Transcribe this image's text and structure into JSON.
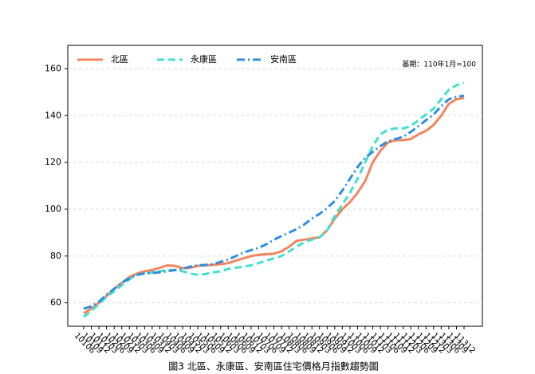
{
  "chart_data": {
    "type": "line",
    "caption": "圖3 北區、永康區、安南區住宅價格月指數趨勢圖",
    "annotation": "基期：110年1月=100",
    "categories": [
      "10106",
      "10109",
      "10112",
      "10203",
      "10206",
      "10209",
      "10212",
      "10303",
      "10306",
      "10309",
      "10312",
      "10403",
      "10406",
      "10409",
      "10412",
      "10503",
      "10506",
      "10509",
      "10512",
      "10603",
      "10606",
      "10609",
      "10612",
      "10703",
      "10706",
      "10709",
      "10712",
      "10803",
      "10806",
      "10809",
      "10812",
      "10903",
      "10906",
      "10909",
      "10912",
      "11003",
      "11006",
      "11009",
      "11012",
      "11103",
      "11106",
      "11109",
      "11112",
      "11203",
      "11206",
      "11209",
      "11212",
      "11303",
      "11306",
      "11309",
      "11312"
    ],
    "series": [
      {
        "name": "北區",
        "color": "#f4845f",
        "dash": "solid",
        "values": [
          55.5,
          57.5,
          60,
          63,
          66,
          68.5,
          71,
          72.5,
          73.5,
          74,
          75,
          76,
          75.8,
          74.8,
          75,
          75.8,
          76,
          76.2,
          76.5,
          77,
          78,
          79,
          80,
          80.5,
          80.8,
          81,
          82,
          84,
          86.5,
          87,
          87.5,
          88,
          91,
          96,
          100,
          103,
          107,
          112,
          120,
          125,
          128.5,
          129.5,
          129.5,
          130,
          132,
          133.5,
          136,
          140,
          145,
          147,
          147.5
        ]
      },
      {
        "name": "永康區",
        "color": "#40e0d0",
        "dash": "dashed",
        "values": [
          54,
          56.5,
          59.5,
          62.5,
          65,
          67.5,
          70,
          72,
          72.5,
          73,
          73.5,
          74,
          74,
          73.5,
          72.5,
          72,
          72.3,
          73,
          73.5,
          74.5,
          75,
          75.5,
          76,
          77,
          78,
          79,
          80,
          82,
          84,
          86,
          87,
          88,
          91,
          97,
          102,
          107,
          113,
          120,
          127,
          132,
          134,
          134.5,
          134.5,
          135.5,
          138,
          140.5,
          143,
          147,
          151,
          153,
          154
        ]
      },
      {
        "name": "安南區",
        "color": "#2e8fe0",
        "dash": "dashdot",
        "values": [
          57.5,
          58.5,
          60.5,
          63.5,
          66,
          68.5,
          70.5,
          72,
          72.5,
          72.8,
          73,
          73.5,
          74,
          74.5,
          75.5,
          76,
          76.2,
          76.5,
          77.5,
          78.5,
          80,
          81.5,
          82.5,
          83.5,
          85,
          87,
          88.5,
          90,
          91.5,
          93.5,
          96,
          98,
          100.5,
          103.5,
          108,
          113,
          118,
          122,
          124.5,
          127,
          129,
          130,
          131,
          133,
          135.5,
          138,
          140.5,
          144,
          147,
          148,
          148.5
        ]
      }
    ],
    "ylim": [
      50,
      170
    ],
    "yticks": [
      60,
      80,
      100,
      120,
      140,
      160
    ],
    "grid": true,
    "legend": "top-left"
  }
}
